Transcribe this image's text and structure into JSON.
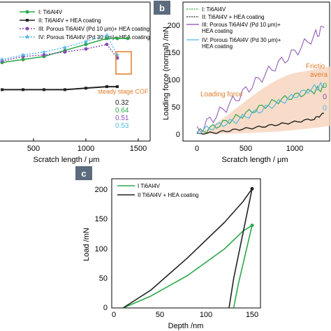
{
  "panel_a": {
    "xlabel": "Scratch length / μm",
    "x_ticks": [
      "500",
      "1000",
      "1500"
    ],
    "legend": [
      "I: Ti6Al4V",
      "II: Ti6Al4V + HEA coating",
      "III: Porous Ti6Al4V (Pd 10 μm)+ HEA coating",
      "IV: Porous Ti6Al4V (Pd 30 μm)+ HEA coating"
    ],
    "cof_title": "steady stage COF",
    "cof_values": [
      "0.32",
      "0.64",
      "0.51",
      "0.53"
    ]
  },
  "panel_b": {
    "label": "b",
    "ylabel": "Loading force (normal) /mN",
    "xlabel": "Scratch length / μm",
    "x_ticks": [
      "0",
      "500",
      "1000"
    ],
    "y_ticks": [
      "0",
      "50",
      "100",
      "150",
      "200"
    ],
    "legend": [
      "I: Ti6Al4V",
      "II: Ti6Al4V + HEA coating",
      "III: Porous Ti6Al4V (Pd 10 μm)+",
      "HEA coating",
      "IV: Porous Ti6Al4V (Pd 30 μm)+",
      "HEA coating"
    ],
    "loading_force_label": "Loading force",
    "friction_label_1": "Frictio",
    "friction_label_2": "avera",
    "right_values": [
      "0",
      "0",
      "0"
    ]
  },
  "panel_c": {
    "label": "c",
    "ylabel": "Load /mN",
    "xlabel": "Depth /nm",
    "x_ticks": [
      "0",
      "50",
      "100",
      "150"
    ],
    "y_ticks": [
      "0",
      "50",
      "100",
      "150",
      "200"
    ],
    "legend": [
      "I Ti6Al4V",
      "II Ti6Al4V + HEA coating"
    ]
  },
  "colors": {
    "green": "#2aa84a",
    "black": "#222222",
    "purple": "#8a4bb5",
    "cyan": "#55b8e8",
    "orange": "#e07b28",
    "grey_label": "#8c8c8c"
  },
  "chart_data": [
    {
      "type": "line",
      "title": "",
      "xlabel": "Scratch length / μm",
      "ylabel": "",
      "xlim": [
        0,
        1500
      ],
      "series": [
        {
          "name": "I: Ti6Al4V",
          "x": [
            200,
            400,
            600,
            800,
            1000,
            1200,
            1300,
            1400
          ],
          "values": [
            0.48,
            0.5,
            0.52,
            0.56,
            0.6,
            0.64,
            0.64,
            0.64
          ]
        },
        {
          "name": "II: Ti6Al4V + HEA coating",
          "x": [
            200,
            400,
            600,
            800,
            1000,
            1200,
            1300
          ],
          "values": [
            0.3,
            0.3,
            0.3,
            0.3,
            0.31,
            0.32,
            0.32
          ]
        },
        {
          "name": "III: Porous Ti6Al4V (Pd 10 μm)+ HEA coating",
          "x": [
            200,
            400,
            600,
            800,
            1000,
            1200,
            1300
          ],
          "values": [
            0.49,
            0.52,
            0.53,
            0.55,
            0.57,
            0.6,
            0.51
          ]
        },
        {
          "name": "IV: Porous Ti6Al4V (Pd 30 μm)+ HEA coating",
          "x": [
            200,
            400,
            600,
            800,
            1000,
            1200,
            1300
          ],
          "values": [
            0.5,
            0.53,
            0.55,
            0.58,
            0.62,
            0.66,
            0.53
          ]
        }
      ]
    },
    {
      "type": "line",
      "title": "",
      "xlabel": "Scratch length / μm",
      "ylabel": "Loading force (normal) /mN",
      "xlim": [
        0,
        1400
      ],
      "ylim": [
        0,
        220
      ],
      "series": [
        {
          "name": "I: Ti6Al4V",
          "x": [
            0,
            200,
            400,
            600,
            800,
            1000,
            1200,
            1300
          ],
          "values": [
            2,
            15,
            30,
            45,
            60,
            70,
            80,
            85
          ]
        },
        {
          "name": "II: Ti6Al4V + HEA coating",
          "x": [
            0,
            200,
            400,
            600,
            800,
            1000,
            1200,
            1300
          ],
          "values": [
            0,
            3,
            8,
            12,
            17,
            22,
            28,
            38
          ]
        },
        {
          "name": "III: Porous Ti6Al4V (Pd 10 μm)+ HEA coating",
          "x": [
            0,
            200,
            400,
            600,
            800,
            1000,
            1200,
            1300
          ],
          "values": [
            5,
            35,
            65,
            95,
            125,
            150,
            180,
            195
          ]
        },
        {
          "name": "IV: Porous Ti6Al4V (Pd 30 μm)+ HEA coating",
          "x": [
            0,
            200,
            400,
            600,
            800,
            1000,
            1200,
            1300
          ],
          "values": [
            3,
            15,
            25,
            40,
            55,
            70,
            85,
            90
          ]
        }
      ]
    },
    {
      "type": "line",
      "title": "",
      "xlabel": "Depth /nm",
      "ylabel": "Load /mN",
      "xlim": [
        0,
        160
      ],
      "ylim": [
        0,
        220
      ],
      "series": [
        {
          "name": "I Ti6Al4V",
          "x": [
            10,
            40,
            80,
            120,
            140,
            150,
            135,
            130
          ],
          "values": [
            0,
            20,
            55,
            100,
            130,
            140,
            40,
            0
          ]
        },
        {
          "name": "II Ti6Al4V + HEA coating",
          "x": [
            10,
            40,
            80,
            120,
            140,
            150,
            130,
            125
          ],
          "values": [
            0,
            30,
            85,
            145,
            180,
            202,
            50,
            0
          ]
        }
      ]
    }
  ]
}
